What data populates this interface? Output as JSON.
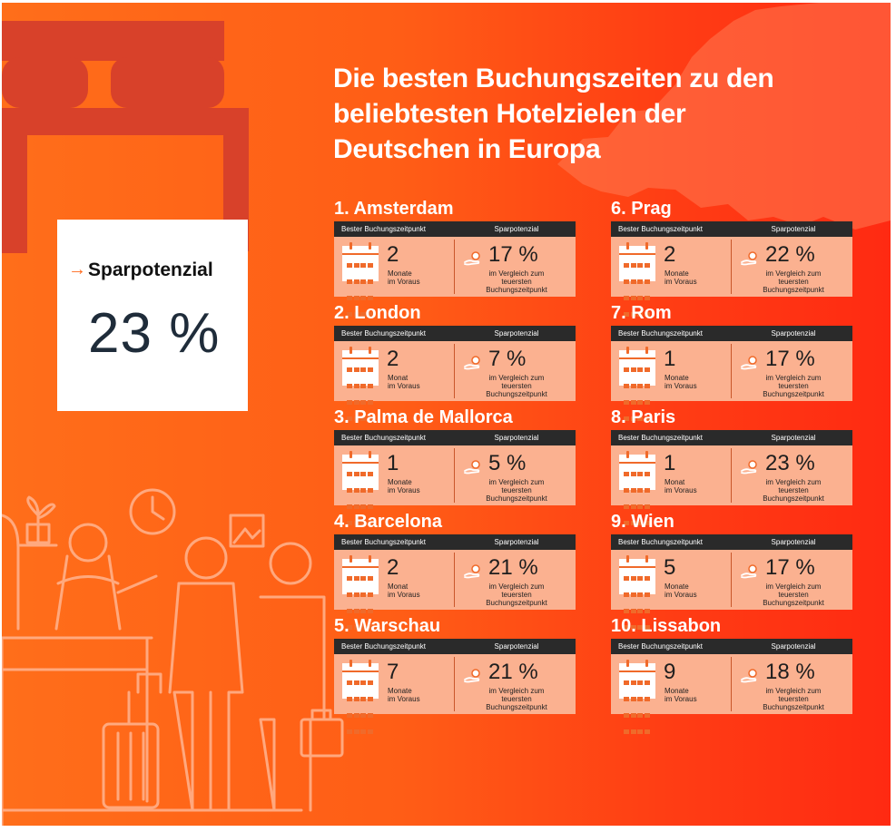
{
  "title_lines": [
    "Die besten Buchungszeiten zu den",
    "beliebtesten Hotelzielen der",
    "Deutschen in Europa"
  ],
  "promo": {
    "label": "Sparpotenzial",
    "value": "23 %"
  },
  "table_headers": {
    "booking": "Bester Buchungszeitpunkt",
    "savings": "Sparpotenzial"
  },
  "destinations": [
    {
      "name": "1. Amsterdam",
      "num": "2",
      "unit_1": "Monate",
      "unit_2": "im Voraus",
      "pct": "17 %",
      "note_1": "im Vergleich zum",
      "note_2": "teuersten",
      "note_3": "Buchungszeitpunkt"
    },
    {
      "name": "2. London",
      "num": "2",
      "unit_1": "Monat",
      "unit_2": "im Voraus",
      "pct": "7 %",
      "note_1": "im Vergleich zum",
      "note_2": "teuersten",
      "note_3": "Buchungszeitpunkt"
    },
    {
      "name": "3. Palma de Mallorca",
      "num": "1",
      "unit_1": "Monate",
      "unit_2": "im Voraus",
      "pct": "5 %",
      "note_1": "im Vergleich zum",
      "note_2": "teuersten",
      "note_3": "Buchungszeitpunkt"
    },
    {
      "name": "4. Barcelona",
      "num": "2",
      "unit_1": "Monat",
      "unit_2": "im Voraus",
      "pct": "21 %",
      "note_1": "im Vergleich zum",
      "note_2": "teuersten",
      "note_3": "Buchungszeitpunkt"
    },
    {
      "name": "5. Warschau",
      "num": "7",
      "unit_1": "Monate",
      "unit_2": "im Voraus",
      "pct": "21 %",
      "note_1": "im Vergleich zum",
      "note_2": "teuersten",
      "note_3": "Buchungszeitpunkt"
    },
    {
      "name": "6. Prag",
      "num": "2",
      "unit_1": "Monate",
      "unit_2": "im Voraus",
      "pct": "22 %",
      "note_1": "im Vergleich zum",
      "note_2": "teuersten",
      "note_3": "Buchungszeitpunkt"
    },
    {
      "name": "7. Rom",
      "num": "1",
      "unit_1": "Monate",
      "unit_2": "im Voraus",
      "pct": "17 %",
      "note_1": "im Vergleich zum",
      "note_2": "teuersten",
      "note_3": "Buchungszeitpunkt"
    },
    {
      "name": "8. Paris",
      "num": "1",
      "unit_1": "Monat",
      "unit_2": "im Voraus",
      "pct": "23 %",
      "note_1": "im Vergleich zum",
      "note_2": "teuersten",
      "note_3": "Buchungszeitpunkt"
    },
    {
      "name": "9. Wien",
      "num": "5",
      "unit_1": "Monate",
      "unit_2": "im Voraus",
      "pct": "17 %",
      "note_1": "im Vergleich zum",
      "note_2": "teuersten",
      "note_3": "Buchungszeitpunkt"
    },
    {
      "name": "10. Lissabon",
      "num": "9",
      "unit_1": "Monate",
      "unit_2": "im Voraus",
      "pct": "18 %",
      "note_1": "im Vergleich zum",
      "note_2": "teuersten",
      "note_3": "Buchungszeitpunkt"
    }
  ],
  "colors": {
    "background": "#ff5d16",
    "card": "#fbb190",
    "header_bar": "#2a2a2a",
    "accent": "#f06a2a",
    "bed_shape": "#d8412a",
    "line_art": "#ffb08a"
  },
  "icons": [
    "calendar-icon",
    "hand-coin-icon",
    "arrow-right-icon",
    "bed-icon",
    "europe-map-icon",
    "hotel-reception-icon",
    "clock-icon",
    "suitcase-icon"
  ]
}
